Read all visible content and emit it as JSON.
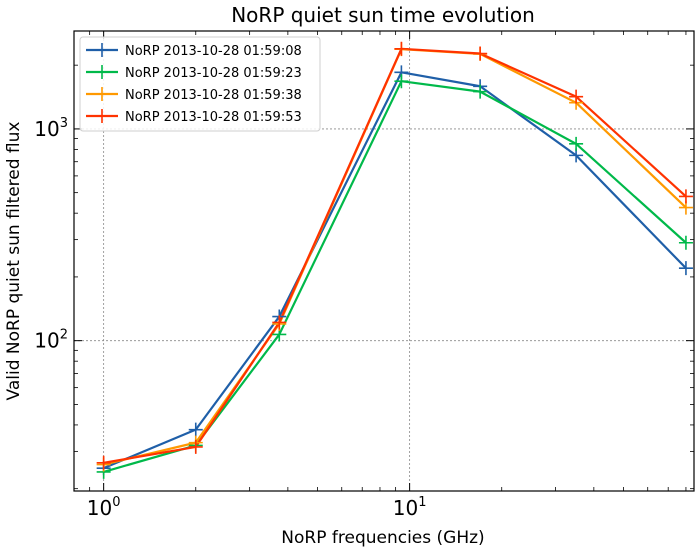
{
  "chart_data": {
    "type": "line",
    "title": "NoRP quiet sun time evolution",
    "xlabel": "NoRP frequencies (GHz)",
    "ylabel": "Valid NoRP quiet sun filtered flux",
    "xscale": "log",
    "yscale": "log",
    "xlim": [
      0.8,
      85
    ],
    "ylim": [
      19.5,
      2900
    ],
    "grid": true,
    "legend_position": "top-left",
    "x": [
      1.0,
      2.0,
      3.75,
      9.4,
      17.0,
      35.0,
      80.0
    ],
    "xticks": [
      {
        "value": 1,
        "base": "10",
        "exp": "0"
      },
      {
        "value": 10,
        "base": "10",
        "exp": "1"
      }
    ],
    "yticks": [
      {
        "value": 100,
        "base": "10",
        "exp": "2"
      },
      {
        "value": 1000,
        "base": "10",
        "exp": "3"
      }
    ],
    "series": [
      {
        "name": "NoRP 2013-10-28 01:59:08",
        "color": "#1f5fa8",
        "values": [
          25,
          38,
          130,
          1850,
          1590,
          750,
          220
        ]
      },
      {
        "name": "NoRP 2013-10-28 01:59:23",
        "color": "#00b94a",
        "values": [
          24,
          32,
          107,
          1680,
          1500,
          850,
          290
        ]
      },
      {
        "name": "NoRP 2013-10-28 01:59:38",
        "color": "#ff9900",
        "values": [
          26,
          33,
          120,
          2380,
          2260,
          1330,
          425
        ]
      },
      {
        "name": "NoRP 2013-10-28 01:59:53",
        "color": "#ff3300",
        "values": [
          26.5,
          31.5,
          122,
          2390,
          2270,
          1420,
          480
        ]
      }
    ]
  }
}
